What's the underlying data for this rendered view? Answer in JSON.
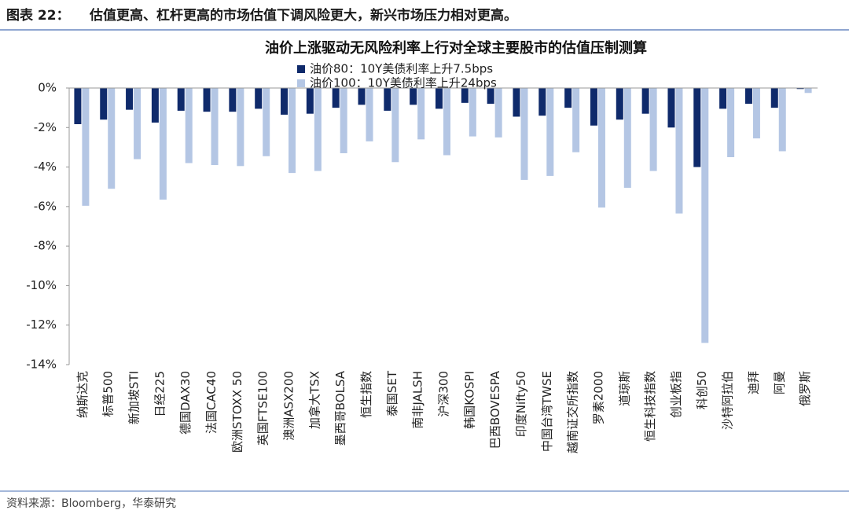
{
  "header": {
    "label": "图表 22：",
    "title": "估值更高、杠杆更高的市场估值下调风险更大，新兴市场压力相对更高。"
  },
  "chart_data": {
    "type": "bar",
    "title": "油价上涨驱动无风险利率上行对全球主要股市的估值压制测算",
    "categories": [
      "纳斯达克",
      "标普500",
      "新加坡STI",
      "日经225",
      "德国DAX30",
      "法国CAC40",
      "欧洲STOXX 50",
      "英国FTSE100",
      "澳洲ASX200",
      "加拿大TSX",
      "墨西哥BOLSA",
      "恒生指数",
      "泰国SET",
      "南非JALSH",
      "沪深300",
      "韩国KOSPI",
      "巴西BOVESPA",
      "印度Nifty50",
      "中国台湾TWSE",
      "越南证交所指数",
      "罗素2000",
      "道琼斯",
      "恒生科技指数",
      "创业板指",
      "科创50",
      "沙特阿拉伯",
      "迪拜",
      "阿曼",
      "俄罗斯"
    ],
    "series": [
      {
        "name": "油价80：10Y美债利率上升7.5bps",
        "color": "#0f2a6b",
        "values": [
          -1.83,
          -1.6,
          -1.1,
          -1.75,
          -1.15,
          -1.2,
          -1.2,
          -1.05,
          -1.35,
          -1.3,
          -1.0,
          -0.85,
          -1.15,
          -0.85,
          -1.05,
          -0.75,
          -0.8,
          -1.45,
          -1.4,
          -1.0,
          -1.9,
          -1.6,
          -1.3,
          -2.0,
          -4.0,
          -1.05,
          -0.8,
          -1.0,
          -0.05
        ]
      },
      {
        "name": "油价100：10Y美债利率上升24bps",
        "color": "#b4c6e4",
        "values": [
          -5.96,
          -5.1,
          -3.6,
          -5.65,
          -3.8,
          -3.9,
          -3.95,
          -3.45,
          -4.3,
          -4.2,
          -3.3,
          -2.7,
          -3.75,
          -2.6,
          -3.4,
          -2.45,
          -2.5,
          -4.65,
          -4.45,
          -3.25,
          -6.05,
          -5.05,
          -4.2,
          -6.35,
          -12.9,
          -3.5,
          -2.55,
          -3.2,
          -0.25
        ]
      }
    ],
    "ylim": [
      -14,
      0
    ],
    "yticks": [
      {
        "value": 0,
        "label": "0%"
      },
      {
        "value": -2,
        "label": "-2%"
      },
      {
        "value": -4,
        "label": "-4%"
      },
      {
        "value": -6,
        "label": "-6%"
      },
      {
        "value": -8,
        "label": "-8%"
      },
      {
        "value": -10,
        "label": "-10%"
      },
      {
        "value": -12,
        "label": "-12%"
      },
      {
        "value": -14,
        "label": "-14%"
      }
    ],
    "grid": false
  },
  "source": "资料来源：Bloomberg，华泰研究"
}
